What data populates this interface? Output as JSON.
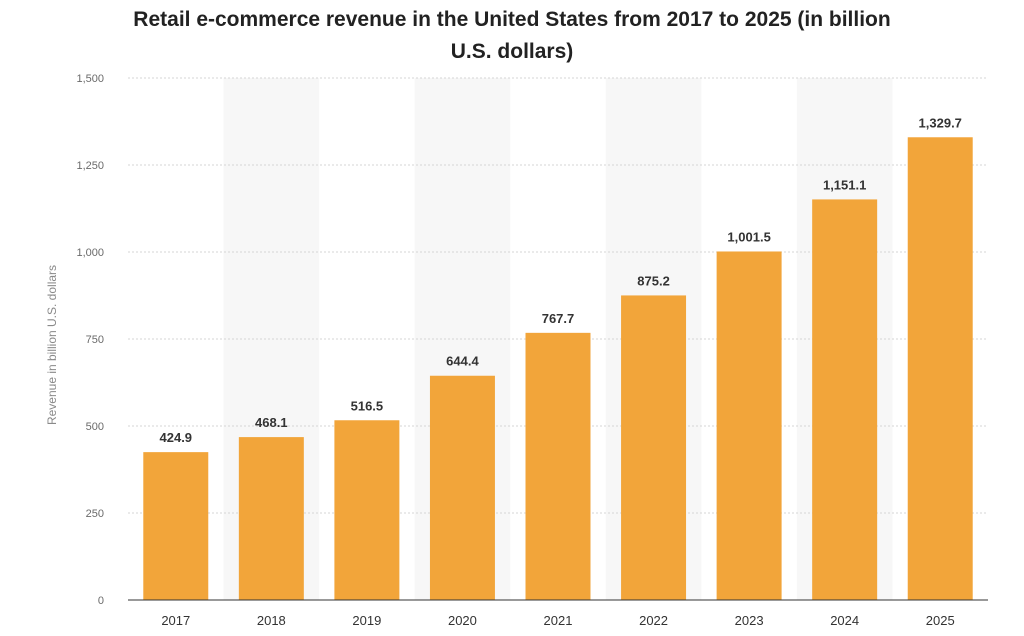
{
  "chart_data": {
    "type": "bar",
    "title_line1": "Retail e-commerce revenue in the United States from 2017 to 2025 (in billion",
    "title_line2": "U.S. dollars)",
    "xlabel": "",
    "ylabel": "Revenue in billion U.S. dollars",
    "categories": [
      "2017",
      "2018",
      "2019",
      "2020",
      "2021",
      "2022",
      "2023",
      "2024",
      "2025"
    ],
    "values": [
      424.9,
      468.1,
      516.5,
      644.4,
      767.7,
      875.2,
      1001.5,
      1151.1,
      1329.7
    ],
    "value_labels": [
      "424.9",
      "468.1",
      "516.5",
      "644.4",
      "767.7",
      "875.2",
      "1,001.5",
      "1,151.1",
      "1,329.7"
    ],
    "ylim": [
      0,
      1500
    ],
    "yticks": [
      0,
      250,
      500,
      750,
      1000,
      1250,
      1500
    ],
    "ytick_labels": [
      "0",
      "250",
      "500",
      "750",
      "1,000",
      "1,250",
      "1,500"
    ],
    "grid": true,
    "bar_color": "#f2a53a",
    "band_color": "#f7f7f7"
  }
}
